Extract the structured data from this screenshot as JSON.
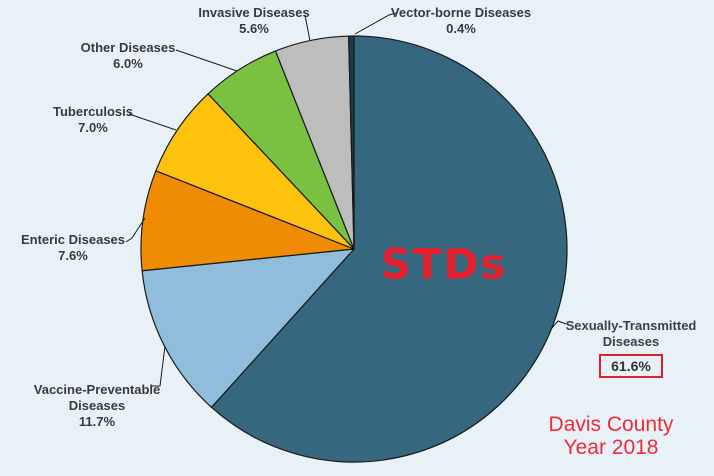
{
  "background_color": "#E9F1F8",
  "chart_data": {
    "type": "pie",
    "unit": "percent",
    "direction": "clockwise",
    "start_angle_deg": 0,
    "legend_position": "none",
    "center_annotation": "STDs",
    "footer_line1": "Davis County",
    "footer_line2": "Year 2018",
    "slices": [
      {
        "key": "stds",
        "label": "Sexually-Transmitted Diseases",
        "pct": "61.6%",
        "value": 61.6,
        "color": "#35687F",
        "pct_boxed": true
      },
      {
        "key": "vaccine",
        "label": "Vaccine-Preventable Diseases",
        "pct": "11.7%",
        "value": 11.7,
        "color": "#8FBDDB",
        "pct_boxed": false
      },
      {
        "key": "enteric",
        "label": "Enteric Diseases",
        "pct": "7.6%",
        "value": 7.6,
        "color": "#F08B04",
        "pct_boxed": false
      },
      {
        "key": "tuberculosis",
        "label": "Tuberculosis",
        "pct": "7.0%",
        "value": 7.0,
        "color": "#FDC20E",
        "pct_boxed": false
      },
      {
        "key": "other",
        "label": "Other Diseases",
        "pct": "6.0%",
        "value": 6.0,
        "color": "#7AC142",
        "pct_boxed": false
      },
      {
        "key": "invasive",
        "label": "Invasive Diseases",
        "pct": "5.6%",
        "value": 5.6,
        "color": "#BDBDBD",
        "pct_boxed": false
      },
      {
        "key": "vector",
        "label": "Vector-borne Diseases",
        "pct": "0.4%",
        "value": 0.4,
        "color": "#19394E",
        "pct_boxed": false
      }
    ],
    "colors": {
      "annotation_red": "#E8202E",
      "footer_red": "#EE2B38",
      "pct_box_border": "#E0202A",
      "label_text": "#3A3A3A",
      "outline": "#1A1A1A",
      "background": "#E9F1F8"
    }
  }
}
